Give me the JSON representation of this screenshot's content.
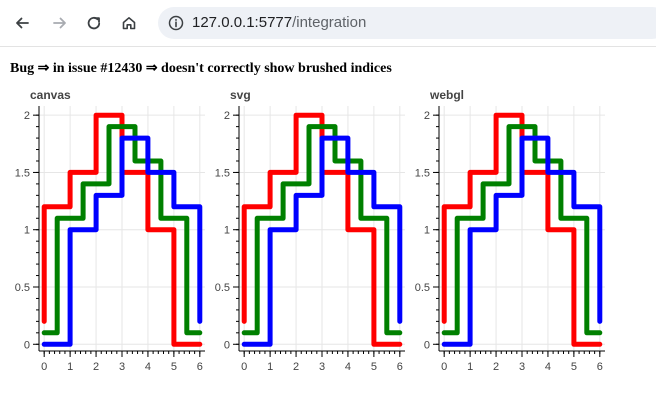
{
  "browser": {
    "url_host": "127.0.0.1:5777",
    "url_path": "/integration",
    "icons": [
      "back-arrow-icon",
      "forward-arrow-icon",
      "reload-icon",
      "home-icon",
      "info-icon"
    ]
  },
  "page": {
    "heading": "Bug ⇒ in issue #12430 ⇒ doesn't correctly show brushed indices"
  },
  "chart_data": [
    {
      "type": "line",
      "title": "canvas",
      "xlim": [
        -0.2,
        6.2
      ],
      "ylim": [
        -0.05,
        2.08
      ],
      "xticks": [
        "0",
        "1",
        "2",
        "3",
        "4",
        "5",
        "6"
      ],
      "yticks": [
        "0",
        "0.5",
        "1",
        "1.5",
        "2"
      ],
      "grid": true,
      "series": [
        {
          "color": "#ff0000",
          "x": [
            0,
            0,
            1,
            1,
            2,
            2,
            3,
            3,
            4,
            4,
            5,
            5,
            6
          ],
          "y": [
            0.2,
            1.2,
            1.2,
            1.5,
            1.5,
            2.0,
            2.0,
            1.5,
            1.5,
            1.0,
            1.0,
            0.0,
            0.0
          ]
        },
        {
          "color": "#008000",
          "x": [
            0,
            0.5,
            0.5,
            1.5,
            1.5,
            2.5,
            2.5,
            3.5,
            3.5,
            4.5,
            4.5,
            5.5,
            5.5,
            6
          ],
          "y": [
            0.1,
            0.1,
            1.1,
            1.1,
            1.4,
            1.4,
            1.9,
            1.9,
            1.6,
            1.6,
            1.1,
            1.1,
            0.1,
            0.1
          ]
        },
        {
          "color": "#0000ff",
          "x": [
            0,
            1,
            1,
            2,
            2,
            3,
            3,
            4,
            4,
            5,
            5,
            6,
            6
          ],
          "y": [
            0.0,
            0.0,
            1.0,
            1.0,
            1.3,
            1.3,
            1.8,
            1.8,
            1.5,
            1.5,
            1.2,
            1.2,
            0.2
          ]
        }
      ]
    },
    {
      "type": "line",
      "title": "svg",
      "xlim": [
        -0.2,
        6.2
      ],
      "ylim": [
        -0.05,
        2.08
      ],
      "xticks": [
        "0",
        "1",
        "2",
        "3",
        "4",
        "5",
        "6"
      ],
      "yticks": [
        "0",
        "0.5",
        "1",
        "1.5",
        "2"
      ],
      "grid": true,
      "series": [
        {
          "color": "#ff0000",
          "x": [
            0,
            0,
            1,
            1,
            2,
            2,
            3,
            3,
            4,
            4,
            5,
            5,
            6
          ],
          "y": [
            0.2,
            1.2,
            1.2,
            1.5,
            1.5,
            2.0,
            2.0,
            1.5,
            1.5,
            1.0,
            1.0,
            0.0,
            0.0
          ]
        },
        {
          "color": "#008000",
          "x": [
            0,
            0.5,
            0.5,
            1.5,
            1.5,
            2.5,
            2.5,
            3.5,
            3.5,
            4.5,
            4.5,
            5.5,
            5.5,
            6
          ],
          "y": [
            0.1,
            0.1,
            1.1,
            1.1,
            1.4,
            1.4,
            1.9,
            1.9,
            1.6,
            1.6,
            1.1,
            1.1,
            0.1,
            0.1
          ]
        },
        {
          "color": "#0000ff",
          "x": [
            0,
            1,
            1,
            2,
            2,
            3,
            3,
            4,
            4,
            5,
            5,
            6,
            6
          ],
          "y": [
            0.0,
            0.0,
            1.0,
            1.0,
            1.3,
            1.3,
            1.8,
            1.8,
            1.5,
            1.5,
            1.2,
            1.2,
            0.2
          ]
        }
      ]
    },
    {
      "type": "line",
      "title": "webgl",
      "xlim": [
        -0.2,
        6.2
      ],
      "ylim": [
        -0.05,
        2.08
      ],
      "xticks": [
        "0",
        "1",
        "2",
        "3",
        "4",
        "5",
        "6"
      ],
      "yticks": [
        "0",
        "0.5",
        "1",
        "1.5",
        "2"
      ],
      "grid": true,
      "series": [
        {
          "color": "#ff0000",
          "x": [
            0,
            0,
            1,
            1,
            2,
            2,
            3,
            3,
            4,
            4,
            5,
            5,
            6
          ],
          "y": [
            0.2,
            1.2,
            1.2,
            1.5,
            1.5,
            2.0,
            2.0,
            1.5,
            1.5,
            1.0,
            1.0,
            0.0,
            0.0
          ]
        },
        {
          "color": "#008000",
          "x": [
            0,
            0.5,
            0.5,
            1.5,
            1.5,
            2.5,
            2.5,
            3.5,
            3.5,
            4.5,
            4.5,
            5.5,
            5.5,
            6
          ],
          "y": [
            0.1,
            0.1,
            1.1,
            1.1,
            1.4,
            1.4,
            1.9,
            1.9,
            1.6,
            1.6,
            1.1,
            1.1,
            0.1,
            0.1
          ]
        },
        {
          "color": "#0000ff",
          "x": [
            0,
            1,
            1,
            2,
            2,
            3,
            3,
            4,
            4,
            5,
            5,
            6,
            6
          ],
          "y": [
            0.0,
            0.0,
            1.0,
            1.0,
            1.3,
            1.3,
            1.8,
            1.8,
            1.5,
            1.5,
            1.2,
            1.2,
            0.2
          ]
        }
      ]
    }
  ]
}
